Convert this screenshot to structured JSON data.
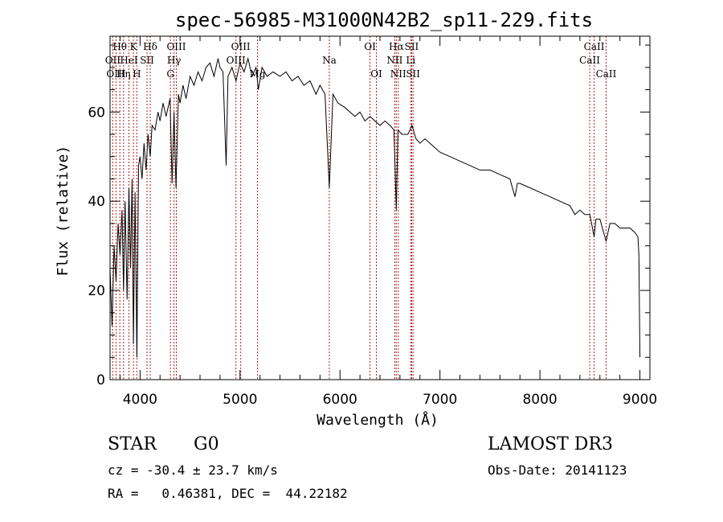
{
  "chart_data": {
    "type": "line",
    "title": "spec-56985-M31000N42B2_sp11-229.fits",
    "xlabel": "Wavelength (Å)",
    "ylabel": "Flux (relative)",
    "xlim": [
      3700,
      9100
    ],
    "ylim": [
      0,
      77
    ],
    "xticks": [
      4000,
      5000,
      6000,
      7000,
      8000,
      9000
    ],
    "yticks": [
      0,
      20,
      40,
      60
    ],
    "series": [
      {
        "name": "flux",
        "x": [
          3700,
          3720,
          3740,
          3760,
          3780,
          3800,
          3820,
          3835,
          3850,
          3870,
          3889,
          3905,
          3920,
          3934,
          3950,
          3968,
          3985,
          4000,
          4020,
          4040,
          4060,
          4080,
          4102,
          4120,
          4150,
          4180,
          4200,
          4230,
          4260,
          4300,
          4320,
          4340,
          4360,
          4384,
          4400,
          4430,
          4460,
          4500,
          4540,
          4580,
          4620,
          4660,
          4700,
          4740,
          4780,
          4800,
          4830,
          4861,
          4880,
          4920,
          4960,
          5000,
          5040,
          5080,
          5120,
          5160,
          5183,
          5220,
          5270,
          5330,
          5400,
          5460,
          5520,
          5580,
          5640,
          5700,
          5760,
          5800,
          5850,
          5893,
          5930,
          5980,
          6050,
          6100,
          6150,
          6200,
          6250,
          6300,
          6350,
          6400,
          6450,
          6500,
          6540,
          6563,
          6580,
          6620,
          6680,
          6720,
          6760,
          6800,
          6850,
          6900,
          6950,
          7000,
          7100,
          7200,
          7300,
          7400,
          7500,
          7600,
          7700,
          7750,
          7775,
          7800,
          7900,
          8000,
          8100,
          8200,
          8300,
          8350,
          8400,
          8450,
          8500,
          8542,
          8560,
          8600,
          8662,
          8700,
          8750,
          8800,
          8850,
          8900,
          8950,
          8980,
          8990,
          9000
        ],
        "values": [
          25,
          12,
          30,
          22,
          35,
          28,
          38,
          20,
          40,
          18,
          43,
          25,
          45,
          8,
          42,
          5,
          48,
          50,
          45,
          53,
          47,
          55,
          50,
          57,
          56,
          60,
          58,
          62,
          59,
          63,
          44,
          60,
          43,
          64,
          62,
          66,
          63,
          68,
          66,
          69,
          67,
          70,
          71,
          68,
          72,
          70,
          69,
          48,
          68,
          70,
          67,
          71,
          69,
          72,
          68,
          70,
          65,
          70,
          68,
          69,
          68,
          69,
          67,
          68,
          66,
          67,
          64,
          66,
          64,
          43,
          64,
          62,
          61,
          60,
          59,
          60,
          58,
          59,
          58,
          57,
          58,
          57,
          56,
          38,
          56,
          55,
          55,
          57,
          54,
          53,
          54,
          53,
          52,
          51,
          50,
          49,
          48,
          47,
          47,
          46,
          45,
          41,
          44,
          44,
          43,
          42,
          41,
          40,
          39,
          37,
          38,
          37,
          37,
          32,
          36,
          36,
          31,
          35,
          35,
          34,
          34,
          34,
          33,
          32,
          28,
          5
        ]
      }
    ],
    "lines": [
      {
        "label": "Hθ",
        "x": 3798,
        "row": 1
      },
      {
        "label": "Hη",
        "x": 3835,
        "row": 3
      },
      {
        "label": "OII",
        "x": 3727,
        "row": 2
      },
      {
        "label": "OIII",
        "x": 3760,
        "row": 3
      },
      {
        "label": "HeI",
        "x": 3889,
        "row": 2
      },
      {
        "label": "K",
        "x": 3934,
        "row": 1
      },
      {
        "label": "H",
        "x": 3968,
        "row": 3
      },
      {
        "label": "SII",
        "x": 4070,
        "row": 2
      },
      {
        "label": "Hδ",
        "x": 4102,
        "row": 1
      },
      {
        "label": "OIII",
        "x": 4363,
        "row": 1
      },
      {
        "label": "Hγ",
        "x": 4340,
        "row": 2
      },
      {
        "label": "G",
        "x": 4304,
        "row": 3
      },
      {
        "label": "OIII",
        "x": 5007,
        "row": 1
      },
      {
        "label": "OIII",
        "x": 4959,
        "row": 2
      },
      {
        "label": "Mg",
        "x": 5175,
        "row": 3
      },
      {
        "label": "Na",
        "x": 5893,
        "row": 2
      },
      {
        "label": "OI",
        "x": 6300,
        "row": 1
      },
      {
        "label": "OI",
        "x": 6364,
        "row": 3
      },
      {
        "label": "Hα",
        "x": 6563,
        "row": 1
      },
      {
        "label": "NII",
        "x": 6548,
        "row": 2
      },
      {
        "label": "NII",
        "x": 6583,
        "row": 3
      },
      {
        "label": "SII",
        "x": 6717,
        "row": 1
      },
      {
        "label": "Li",
        "x": 6708,
        "row": 2
      },
      {
        "label": "SII",
        "x": 6731,
        "row": 3
      },
      {
        "label": "CaII",
        "x": 8542,
        "row": 1
      },
      {
        "label": "CaII",
        "x": 8498,
        "row": 2
      },
      {
        "label": "CaII",
        "x": 8662,
        "row": 3
      }
    ]
  },
  "info": {
    "class": "STAR",
    "subclass": "G0",
    "survey": "LAMOST DR3",
    "cz": "cz = -30.4 ± 23.7 km/s",
    "obs_date": "Obs-Date: 20141123",
    "radec": "RA =   0.46381, DEC =  44.22182"
  },
  "colors": {
    "line_marker": "#b22222",
    "spectrum": "#000000"
  }
}
